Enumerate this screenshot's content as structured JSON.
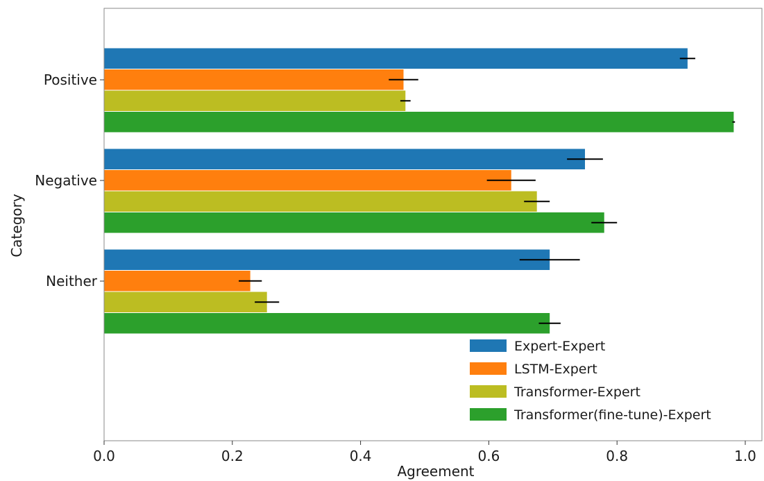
{
  "chart_data": {
    "type": "bar",
    "orientation": "horizontal",
    "title": "",
    "xlabel": "Agreement",
    "ylabel": "Category",
    "xlim": [
      0.0,
      1.0
    ],
    "xticks": [
      "0.0",
      "0.2",
      "0.4",
      "0.6",
      "0.8",
      "1.0"
    ],
    "categories": [
      "Positive",
      "Negative",
      "Neither"
    ],
    "series": [
      {
        "name": "Expert-Expert",
        "color": "#1f77b4",
        "values": [
          0.91,
          0.75,
          0.695
        ],
        "errors": [
          0.012,
          0.028,
          0.047
        ]
      },
      {
        "name": "LSTM-Expert",
        "color": "#ff7f0e",
        "values": [
          0.467,
          0.635,
          0.228
        ],
        "errors": [
          0.023,
          0.038,
          0.018
        ]
      },
      {
        "name": "Transformer-Expert",
        "color": "#bcbd22",
        "values": [
          0.47,
          0.675,
          0.254
        ],
        "errors": [
          0.008,
          0.02,
          0.019
        ]
      },
      {
        "name": "Transformer(fine-tune)-Expert",
        "color": "#2ca02c",
        "values": [
          0.982,
          0.78,
          0.695
        ],
        "errors": [
          0.002,
          0.02,
          0.017
        ]
      }
    ],
    "error_bar_color": "#000000",
    "grid": false,
    "legend_position": "lower-right"
  }
}
